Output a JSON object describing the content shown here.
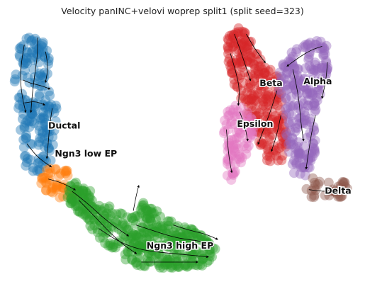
{
  "title": "Velocity panINC+velovi woprep split1 (split seed=323)",
  "chart_data": {
    "type": "scatter",
    "subtype": "umap-embedding-with-velocity-streamlines",
    "title": "Velocity panINC+velovi woprep split1 (split seed=323)",
    "xlabel": "",
    "ylabel": "",
    "axes_visible": false,
    "grid": false,
    "legend": "on-data",
    "colors": {
      "Ductal": "#1f77b4",
      "Ngn3 low EP": "#ff7f0e",
      "Ngn3 high EP": "#2ca02c",
      "Beta": "#d62728",
      "Alpha": "#9467bd",
      "Delta": "#8c564b",
      "Epsilon": "#e377c2",
      "streamline": "#000000"
    },
    "clusters": [
      {
        "name": "Ductal",
        "label_pos": [
          3.2,
          8.0
        ],
        "shape": [
          [
            1.0,
            12.7
          ],
          [
            2.2,
            13.3
          ],
          [
            3.0,
            12.6
          ],
          [
            3.4,
            11.6
          ],
          [
            3.0,
            10.6
          ],
          [
            3.9,
            9.0
          ],
          [
            3.7,
            7.2
          ],
          [
            3.4,
            6.0
          ],
          [
            2.6,
            5.2
          ],
          [
            1.4,
            5.6
          ],
          [
            1.2,
            7.0
          ],
          [
            1.0,
            8.5
          ],
          [
            0.6,
            10.0
          ],
          [
            0.8,
            11.3
          ]
        ]
      },
      {
        "name": "Ngn3 low EP",
        "label_pos": [
          3.7,
          6.4
        ],
        "shape": [
          [
            2.6,
            5.2
          ],
          [
            3.6,
            5.8
          ],
          [
            5.0,
            5.4
          ],
          [
            5.6,
            4.2
          ],
          [
            4.5,
            3.6
          ],
          [
            3.4,
            4.3
          ],
          [
            2.8,
            4.4
          ],
          [
            2.4,
            4.8
          ]
        ]
      },
      {
        "name": "Ngn3 high EP",
        "label_pos": [
          10.6,
          1.2
        ],
        "shape": [
          [
            4.5,
            5.0
          ],
          [
            5.8,
            4.8
          ],
          [
            7.2,
            3.8
          ],
          [
            8.5,
            3.2
          ],
          [
            9.6,
            3.0
          ],
          [
            10.4,
            3.7
          ],
          [
            11.2,
            3.4
          ],
          [
            12.5,
            2.7
          ],
          [
            14.2,
            2.1
          ],
          [
            15.5,
            1.4
          ],
          [
            16.0,
            0.7
          ],
          [
            14.8,
            0.1
          ],
          [
            12.5,
            -0.1
          ],
          [
            10.0,
            0.1
          ],
          [
            8.5,
            0.6
          ],
          [
            7.0,
            1.7
          ],
          [
            5.6,
            3.0
          ],
          [
            4.6,
            3.8
          ]
        ]
      },
      {
        "name": "Beta",
        "label_pos": [
          19.1,
          10.4
        ],
        "shape": [
          [
            16.8,
            13.6
          ],
          [
            17.8,
            13.5
          ],
          [
            18.6,
            12.6
          ],
          [
            19.6,
            11.6
          ],
          [
            20.5,
            10.8
          ],
          [
            20.8,
            9.6
          ],
          [
            21.0,
            8.2
          ],
          [
            21.2,
            6.8
          ],
          [
            20.5,
            5.6
          ],
          [
            19.7,
            6.0
          ],
          [
            19.0,
            7.2
          ],
          [
            18.3,
            8.3
          ],
          [
            17.6,
            9.4
          ],
          [
            17.0,
            10.8
          ],
          [
            16.6,
            12.2
          ]
        ]
      },
      {
        "name": "Alpha",
        "label_pos": [
          22.4,
          10.5
        ],
        "shape": [
          [
            20.5,
            11.4
          ],
          [
            21.7,
            12.3
          ],
          [
            22.8,
            12.8
          ],
          [
            24.0,
            12.8
          ],
          [
            24.5,
            11.9
          ],
          [
            24.3,
            10.6
          ],
          [
            23.6,
            9.6
          ],
          [
            23.2,
            8.4
          ],
          [
            23.5,
            7.0
          ],
          [
            22.8,
            5.5
          ],
          [
            22.3,
            4.8
          ],
          [
            21.6,
            5.4
          ],
          [
            21.2,
            6.8
          ],
          [
            21.0,
            8.2
          ],
          [
            20.7,
            9.6
          ],
          [
            20.4,
            10.6
          ]
        ]
      },
      {
        "name": "Delta",
        "label_pos": [
          24.0,
          4.3
        ],
        "shape": [
          [
            22.5,
            5.2
          ],
          [
            23.8,
            5.0
          ],
          [
            25.6,
            4.9
          ],
          [
            25.9,
            4.2
          ],
          [
            24.8,
            3.8
          ],
          [
            23.2,
            3.8
          ],
          [
            22.4,
            4.4
          ]
        ]
      },
      {
        "name": "Epsilon",
        "label_pos": [
          17.4,
          8.1
        ],
        "shape": [
          [
            16.8,
            9.2
          ],
          [
            17.9,
            9.4
          ],
          [
            18.9,
            8.6
          ],
          [
            18.6,
            7.4
          ],
          [
            18.0,
            6.2
          ],
          [
            17.4,
            5.2
          ],
          [
            16.8,
            4.8
          ],
          [
            16.4,
            5.6
          ],
          [
            16.6,
            7.0
          ],
          [
            16.2,
            8.2
          ]
        ]
      }
    ],
    "streamlines": [
      [
        [
          1.4,
          12.6
        ],
        [
          1.2,
          11.7
        ],
        [
          1.1,
          10.8
        ],
        [
          1.2,
          9.8
        ],
        [
          1.5,
          8.8
        ]
      ],
      [
        [
          2.4,
          13.0
        ],
        [
          2.4,
          12.0
        ],
        [
          2.2,
          11.0
        ],
        [
          2.0,
          9.8
        ],
        [
          1.9,
          8.8
        ]
      ],
      [
        [
          3.0,
          12.2
        ],
        [
          3.2,
          11.3
        ],
        [
          3.0,
          10.5
        ]
      ],
      [
        [
          1.3,
          10.6
        ],
        [
          1.9,
          10.4
        ],
        [
          2.6,
          10.3
        ],
        [
          3.3,
          10.1
        ]
      ],
      [
        [
          1.4,
          9.3
        ],
        [
          2.2,
          9.4
        ],
        [
          2.9,
          9.2
        ]
      ],
      [
        [
          3.5,
          9.0
        ],
        [
          3.3,
          8.0
        ],
        [
          3.2,
          7.0
        ],
        [
          3.1,
          6.2
        ]
      ],
      [
        [
          1.6,
          7.0
        ],
        [
          2.2,
          6.4
        ],
        [
          2.8,
          6.0
        ],
        [
          3.4,
          5.7
        ]
      ],
      [
        [
          3.2,
          5.0
        ],
        [
          4.2,
          4.8
        ],
        [
          5.2,
          4.4
        ]
      ],
      [
        [
          5.0,
          4.3
        ],
        [
          6.2,
          3.6
        ],
        [
          7.2,
          2.9
        ],
        [
          8.2,
          2.3
        ],
        [
          9.2,
          1.8
        ]
      ],
      [
        [
          5.5,
          3.8
        ],
        [
          6.8,
          2.8
        ],
        [
          7.8,
          2.0
        ],
        [
          8.8,
          1.3
        ],
        [
          9.8,
          0.8
        ]
      ],
      [
        [
          7.0,
          2.2
        ],
        [
          8.4,
          1.5
        ],
        [
          9.7,
          1.1
        ],
        [
          11.0,
          0.9
        ],
        [
          12.4,
          0.8
        ],
        [
          13.8,
          0.7
        ],
        [
          15.2,
          0.6
        ]
      ],
      [
        [
          9.8,
          2.4
        ],
        [
          11.0,
          2.1
        ],
        [
          12.2,
          1.8
        ],
        [
          13.4,
          1.6
        ],
        [
          14.6,
          1.5
        ],
        [
          15.6,
          1.2
        ]
      ],
      [
        [
          10.2,
          0.3
        ],
        [
          11.6,
          0.3
        ],
        [
          13.0,
          0.3
        ],
        [
          14.4,
          0.3
        ]
      ],
      [
        [
          12.6,
          2.4
        ],
        [
          13.8,
          2.1
        ],
        [
          15.0,
          1.9
        ],
        [
          15.9,
          1.6
        ]
      ],
      [
        [
          9.6,
          3.2
        ],
        [
          9.8,
          4.0
        ],
        [
          10.0,
          4.6
        ]
      ],
      [
        [
          17.2,
          13.2
        ],
        [
          17.6,
          12.4
        ],
        [
          18.0,
          11.5
        ],
        [
          18.4,
          10.6
        ]
      ],
      [
        [
          16.9,
          12.1
        ],
        [
          17.3,
          11.1
        ],
        [
          17.6,
          10.1
        ],
        [
          17.5,
          9.2
        ]
      ],
      [
        [
          18.1,
          13.2
        ],
        [
          18.7,
          12.4
        ],
        [
          19.5,
          11.6
        ]
      ],
      [
        [
          20.4,
          10.0
        ],
        [
          20.0,
          9.0
        ],
        [
          19.5,
          8.0
        ],
        [
          19.0,
          7.0
        ]
      ],
      [
        [
          20.7,
          8.6
        ],
        [
          20.4,
          7.5
        ],
        [
          20.0,
          6.6
        ]
      ],
      [
        [
          23.8,
          12.5
        ],
        [
          23.0,
          12.3
        ],
        [
          22.1,
          11.9
        ],
        [
          21.2,
          11.4
        ]
      ],
      [
        [
          24.2,
          11.6
        ],
        [
          24.1,
          10.6
        ],
        [
          23.8,
          9.6
        ]
      ],
      [
        [
          21.6,
          11.2
        ],
        [
          21.9,
          10.2
        ],
        [
          22.1,
          9.2
        ],
        [
          22.2,
          8.2
        ],
        [
          22.4,
          7.2
        ]
      ],
      [
        [
          23.3,
          8.6
        ],
        [
          23.0,
          7.6
        ],
        [
          22.8,
          6.6
        ],
        [
          22.6,
          5.6
        ]
      ],
      [
        [
          16.6,
          7.8
        ],
        [
          16.7,
          7.0
        ],
        [
          16.8,
          6.2
        ],
        [
          17.0,
          5.4
        ]
      ],
      [
        [
          17.6,
          8.8
        ],
        [
          18.0,
          8.0
        ],
        [
          18.2,
          7.2
        ]
      ],
      [
        [
          22.8,
          4.4
        ],
        [
          23.8,
          4.3
        ],
        [
          24.8,
          4.3
        ],
        [
          25.6,
          4.4
        ]
      ]
    ],
    "xlim": [
      0,
      26.6
    ],
    "ylim": [
      -0.9,
      14.0
    ]
  }
}
